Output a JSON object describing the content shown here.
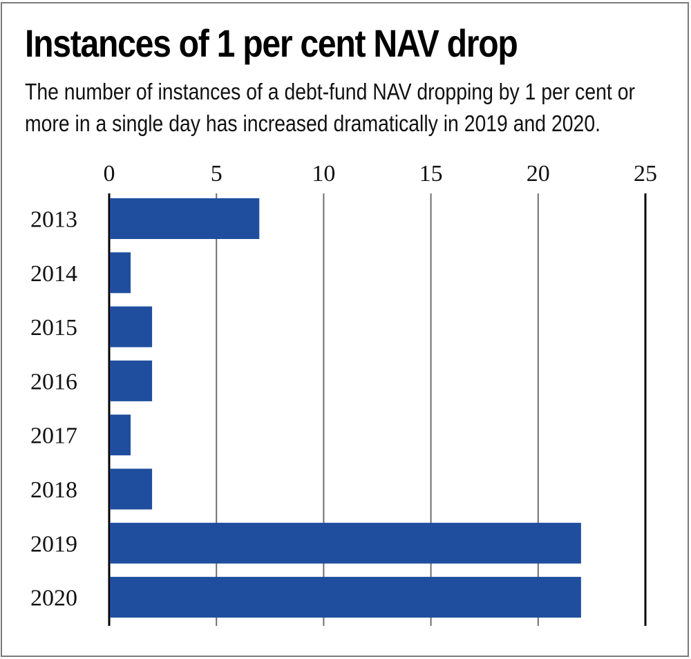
{
  "chart_data": {
    "type": "bar",
    "orientation": "horizontal",
    "title": "Instances of 1 per cent NAV drop",
    "subtitle": "The number of instances of a debt-fund NAV dropping by 1 per cent or more in a single day has increased dramatically in 2019 and 2020.",
    "categories": [
      "2013",
      "2014",
      "2015",
      "2016",
      "2017",
      "2018",
      "2019",
      "2020"
    ],
    "values": [
      7,
      1,
      2,
      2,
      1,
      2,
      22,
      22
    ],
    "xlabel": "",
    "ylabel": "",
    "xlim": [
      0,
      25
    ],
    "xticks": [
      0,
      5,
      10,
      15,
      20,
      25
    ],
    "tick_axis_position": "top",
    "grid": true,
    "legend": "none",
    "bar_color": "#1f4e9e"
  }
}
